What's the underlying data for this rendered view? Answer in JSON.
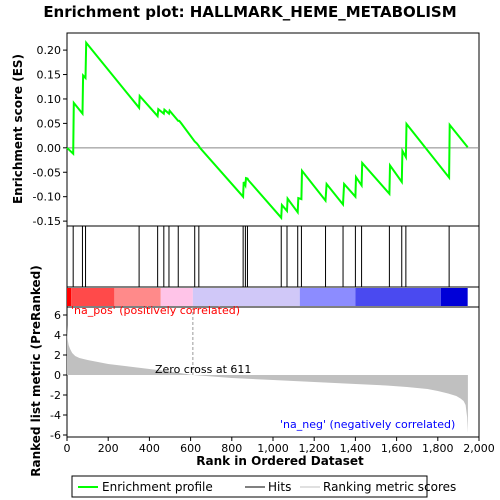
{
  "chart_data": {
    "type": "line",
    "title": "Enrichment plot: HALLMARK_HEME_METABOLISM",
    "es_panel": {
      "ylabel": "Enrichment score (ES)",
      "ylim": [
        -0.16,
        0.235
      ],
      "yticks": [
        0.2,
        0.15,
        0.1,
        0.05,
        0.0,
        -0.05,
        -0.1,
        -0.15
      ],
      "ytick_labels": [
        "0.20",
        "0.15",
        "0.10",
        "0.05",
        "0.00",
        "-0.05",
        "-0.10",
        "-0.15"
      ],
      "series": [
        {
          "name": "Enrichment profile",
          "color": "#00ff00",
          "x": [
            0,
            30,
            33,
            75,
            78,
            90,
            93,
            350,
            353,
            440,
            443,
            470,
            473,
            495,
            498,
            540,
            545,
            555,
            620,
            630,
            640,
            645,
            855,
            858,
            866,
            869,
            876,
            880,
            1040,
            1043,
            1068,
            1071,
            1120,
            1123,
            1138,
            1141,
            1255,
            1260,
            1340,
            1345,
            1400,
            1403,
            1430,
            1433,
            1565,
            1568,
            1625,
            1628,
            1645,
            1648,
            1855,
            1858,
            1945
          ],
          "y": [
            0.0,
            -0.012,
            0.092,
            0.07,
            0.148,
            0.143,
            0.215,
            0.082,
            0.106,
            0.065,
            0.079,
            0.07,
            0.078,
            0.07,
            0.076,
            0.055,
            0.055,
            0.05,
            0.013,
            0.009,
            0.004,
            0.0,
            -0.1,
            -0.07,
            -0.077,
            -0.062,
            -0.063,
            -0.066,
            -0.143,
            -0.117,
            -0.129,
            -0.104,
            -0.132,
            -0.103,
            -0.105,
            -0.047,
            -0.108,
            -0.074,
            -0.116,
            -0.074,
            -0.1,
            -0.06,
            -0.077,
            -0.031,
            -0.094,
            -0.036,
            -0.07,
            -0.006,
            -0.019,
            0.049,
            -0.061,
            0.047,
            0.001
          ]
        }
      ]
    },
    "hits": [
      30,
      75,
      90,
      350,
      440,
      470,
      495,
      540,
      620,
      640,
      855,
      866,
      876,
      1040,
      1068,
      1120,
      1138,
      1255,
      1340,
      1400,
      1430,
      1565,
      1625,
      1645,
      1855
    ],
    "rank_panel": {
      "ylabel": "Ranked list metric (PreRanked)",
      "xlabel": "Rank in Ordered Dataset",
      "xlim": [
        0,
        2000
      ],
      "ylim": [
        -6.2,
        6.8
      ],
      "xticks": [
        0,
        200,
        400,
        600,
        800,
        1000,
        1200,
        1400,
        1600,
        1800,
        2000
      ],
      "xtick_labels": [
        "0",
        "200",
        "400",
        "600",
        "800",
        "1,000",
        "1,200",
        "1,400",
        "1,600",
        "1,800",
        "2,000"
      ],
      "yticks": [
        6,
        4,
        2,
        0,
        -2,
        -4,
        -6
      ],
      "metric_curve": {
        "x": [
          0,
          3,
          8,
          15,
          25,
          40,
          60,
          100,
          150,
          200,
          300,
          400,
          500,
          611,
          800,
          1000,
          1200,
          1400,
          1550,
          1650,
          1750,
          1800,
          1850,
          1890,
          1910,
          1925,
          1935,
          1942,
          1946
        ],
        "y": [
          5.0,
          3.6,
          3.0,
          2.6,
          2.2,
          1.9,
          1.7,
          1.5,
          1.3,
          1.1,
          0.85,
          0.6,
          0.35,
          0.0,
          -0.3,
          -0.5,
          -0.7,
          -0.9,
          -1.05,
          -1.2,
          -1.4,
          -1.6,
          -1.85,
          -2.1,
          -2.35,
          -2.6,
          -3.0,
          -4.2,
          -5.8
        ]
      },
      "zero_cross_label": "Zero cross at 611",
      "zero_cross_rank": 611,
      "pos_label": "'na_pos' (positively correlated)",
      "neg_label": "'na_neg' (negatively correlated)",
      "pos_color": "#ff0000",
      "neg_color": "#0000ff"
    },
    "color_bar": {
      "segments": [
        {
          "from": 0,
          "to": 20,
          "color": "#ff0000"
        },
        {
          "from": 20,
          "to": 230,
          "color": "#ff4a4a"
        },
        {
          "from": 230,
          "to": 455,
          "color": "#ff8a8a"
        },
        {
          "from": 455,
          "to": 611,
          "color": "#ffc4e8"
        },
        {
          "from": 611,
          "to": 1130,
          "color": "#d0c8f8"
        },
        {
          "from": 1130,
          "to": 1400,
          "color": "#8c8cff"
        },
        {
          "from": 1400,
          "to": 1815,
          "color": "#4a4af0"
        },
        {
          "from": 1815,
          "to": 1945,
          "color": "#0000d8"
        }
      ]
    },
    "legend": {
      "items": [
        {
          "label": "Enrichment profile",
          "color": "#00ff00"
        },
        {
          "label": "Hits",
          "color": "#000000"
        },
        {
          "label": "Ranking metric scores",
          "color": "#c0c0c0"
        }
      ]
    }
  }
}
